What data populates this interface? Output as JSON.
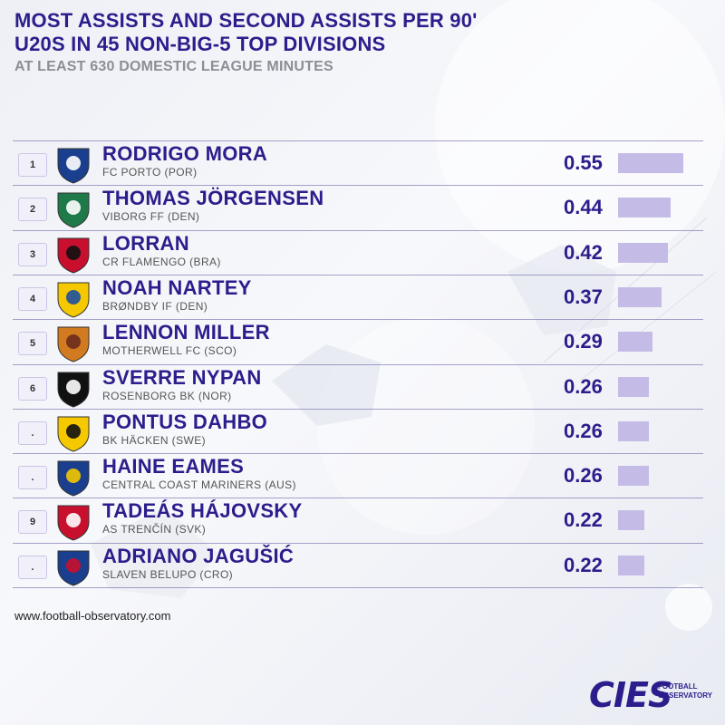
{
  "header": {
    "title_line1": "MOST ASSISTS AND SECOND ASSISTS PER 90'",
    "title_line2": "U20S IN 45 NON-BIG-5 TOP DIVISIONS",
    "subtitle": "AT LEAST 630 DOMESTIC LEAGUE MINUTES"
  },
  "footer": {
    "url": "www.football-observatory.com",
    "brand": "CIES",
    "brand_sub_line1": "FOOTBALL",
    "brand_sub_line2": "OBSERVATORY"
  },
  "colors": {
    "title": "#2b1e8c",
    "bar": "#c4bce6",
    "subtitle": "#8d8d97"
  },
  "chart_data": {
    "type": "bar",
    "orientation": "horizontal",
    "categories": [
      "RODRIGO MORA",
      "THOMAS JÖRGENSEN",
      "LORRAN",
      "NOAH NARTEY",
      "LENNON MILLER",
      "SVERRE NYPAN",
      "PONTUS DAHBO",
      "HAINE EAMES",
      "TADEÁS HÁJOVSKY",
      "ADRIANO JAGUŠIĆ"
    ],
    "ranks": [
      "1",
      "2",
      "3",
      "4",
      "5",
      "6",
      ".",
      ".",
      "9",
      "."
    ],
    "clubs": [
      "FC PORTO (POR)",
      "VIBORG FF (DEN)",
      "CR FLAMENGO (BRA)",
      "BRØNDBY IF (DEN)",
      "MOTHERWELL FC (SCO)",
      "ROSENBORG BK (NOR)",
      "BK HÄCKEN (SWE)",
      "CENTRAL COAST MARINERS (AUS)",
      "AS TRENČÍN (SVK)",
      "SLAVEN BELUPO (CRO)"
    ],
    "values": [
      0.55,
      0.44,
      0.42,
      0.37,
      0.29,
      0.26,
      0.26,
      0.26,
      0.22,
      0.22
    ],
    "value_labels": [
      "0.55",
      "0.44",
      "0.42",
      "0.37",
      "0.29",
      "0.26",
      "0.26",
      "0.26",
      "0.22",
      "0.22"
    ],
    "logo_icons": [
      "fc-porto-crest-icon",
      "viborg-ff-crest-icon",
      "flamengo-crest-icon",
      "brondby-crest-icon",
      "motherwell-crest-icon",
      "rosenborg-crest-icon",
      "hacken-crest-icon",
      "central-coast-mariners-crest-icon",
      "trencin-crest-icon",
      "slaven-belupo-crest-icon"
    ],
    "xlim": [
      0,
      0.55
    ],
    "title": "MOST ASSISTS AND SECOND ASSISTS PER 90'"
  }
}
